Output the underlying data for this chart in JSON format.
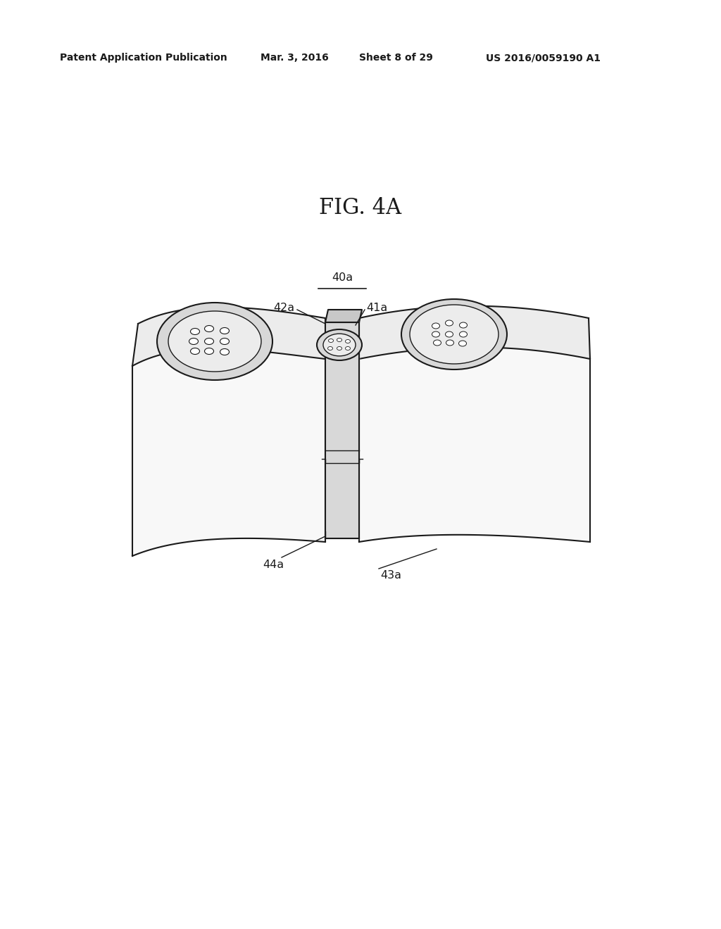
{
  "bg_color": "#ffffff",
  "header_text": "Patent Application Publication",
  "header_date": "Mar. 3, 2016",
  "header_sheet": "Sheet 8 of 29",
  "header_patent": "US 2016/0059190 A1",
  "fig_label": "FIG. 4A",
  "edge_color": "#1a1a1a",
  "face_light": "#f8f8f8",
  "face_mid": "#ececec",
  "face_dark": "#d8d8d8",
  "face_darker": "#c8c8c8",
  "lw_main": 1.5,
  "lw_thin": 1.0,
  "label_fontsize": 11.5,
  "header_fontsize": 10,
  "fig_fontsize": 22
}
